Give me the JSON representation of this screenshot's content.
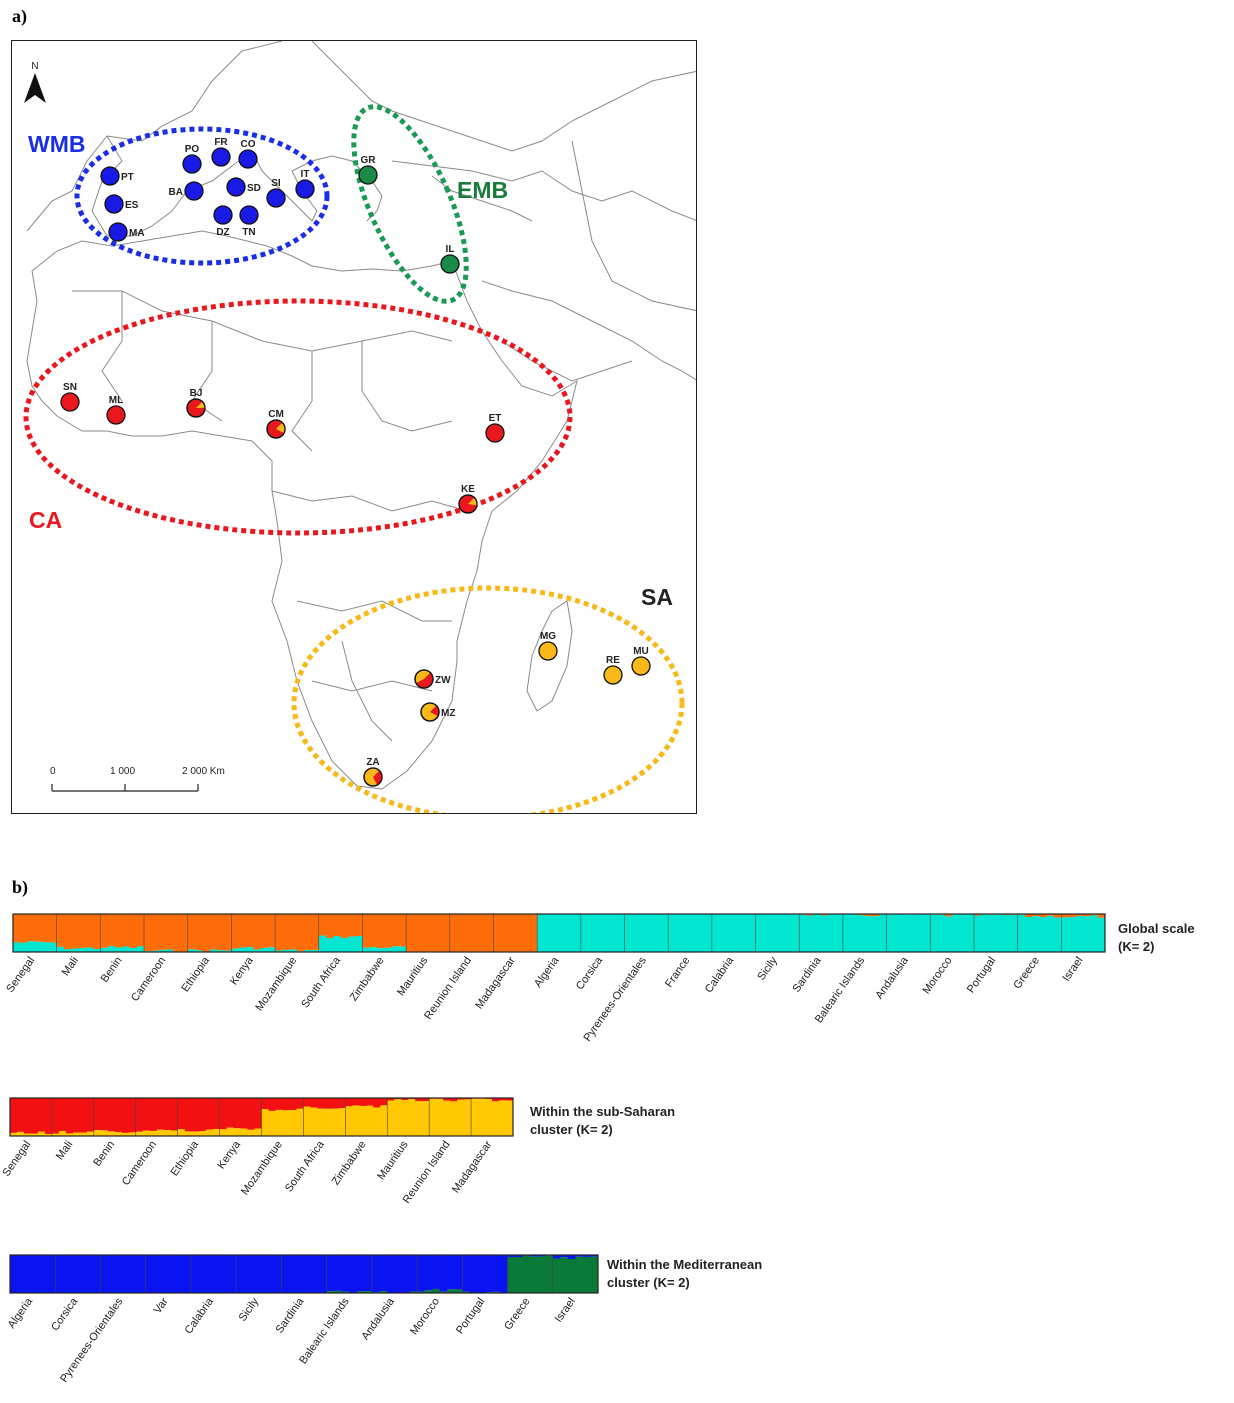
{
  "panel_a_label": "a)",
  "panel_b_label": "b)",
  "map": {
    "north_label": "N",
    "scale": {
      "ticks": [
        "0",
        "1 000",
        "2 000 Km"
      ]
    },
    "regions": [
      {
        "id": "WMB",
        "label": "WMB",
        "color": "#1a2ee6"
      },
      {
        "id": "EMB",
        "label": "EMB",
        "color": "#1a7a3a"
      },
      {
        "id": "CA",
        "label": "CA",
        "color": "#e8181e"
      },
      {
        "id": "SA",
        "label": "SA",
        "color": "#222222"
      }
    ],
    "sites": [
      {
        "code": "PT",
        "fill": "#1a1ae6",
        "sector": 0
      },
      {
        "code": "ES",
        "fill": "#1a1ae6",
        "sector": 0
      },
      {
        "code": "MA",
        "fill": "#1a1ae6",
        "sector": 0
      },
      {
        "code": "PO",
        "fill": "#1a1ae6",
        "sector": 0
      },
      {
        "code": "FR",
        "fill": "#1a1ae6",
        "sector": 0
      },
      {
        "code": "CO",
        "fill": "#1a1ae6",
        "sector": 0
      },
      {
        "code": "BA",
        "fill": "#1a1ae6",
        "sector": 0
      },
      {
        "code": "SD",
        "fill": "#1a1ae6",
        "sector": 0
      },
      {
        "code": "SI",
        "fill": "#1a1ae6",
        "sector": 0
      },
      {
        "code": "IT",
        "fill": "#1a1ae6",
        "sector": 0
      },
      {
        "code": "DZ",
        "fill": "#1a1ae6",
        "sector": 0
      },
      {
        "code": "TN",
        "fill": "#1a1ae6",
        "sector": 0
      },
      {
        "code": "GR",
        "fill": "#1a8a48",
        "sector": 0
      },
      {
        "code": "IL",
        "fill": "#1a8a48",
        "sector": 0
      },
      {
        "code": "SN",
        "fill": "#e8181e",
        "sector": 0
      },
      {
        "code": "ML",
        "fill": "#e8181e",
        "sector": 0
      },
      {
        "code": "BJ",
        "fill": "#e8181e",
        "sector": 0.12
      },
      {
        "code": "CM",
        "fill": "#e8181e",
        "sector": 0.2
      },
      {
        "code": "ET",
        "fill": "#e8181e",
        "sector": 0
      },
      {
        "code": "KE",
        "fill": "#e8181e",
        "sector": 0.15
      },
      {
        "code": "MG",
        "fill": "#f7b818",
        "sector": 0
      },
      {
        "code": "RE",
        "fill": "#f7b818",
        "sector": 0
      },
      {
        "code": "MU",
        "fill": "#f7b818",
        "sector": 0
      },
      {
        "code": "ZW",
        "fill": "#f7b818",
        "sector": 0.55,
        "sector_color": "#e8181e"
      },
      {
        "code": "MZ",
        "fill": "#f7b818",
        "sector": 0.2,
        "sector_color": "#e8181e"
      },
      {
        "code": "ZA",
        "fill": "#f7b818",
        "sector": 0.3,
        "sector_color": "#e8181e"
      }
    ]
  },
  "barplots": [
    {
      "caption": [
        "Global scale",
        "(K= 2)"
      ],
      "colors": [
        "#ff6d0a",
        "#00e6d0"
      ],
      "populations": [
        "Senegal",
        "Mali",
        "Benin",
        "Cameroon",
        "Ethiopia",
        "Kenya",
        "Mozambique",
        "South Africa",
        "Zimbabwe",
        "Mauritius",
        "Reunion Island",
        "Madagascar",
        "Algeria",
        "Corsica",
        "Pyrenees-Orientales",
        "France",
        "Calabria",
        "Sicily",
        "Sardinia",
        "Balearic Islands",
        "Andalusia",
        "Morocco",
        "Portugal",
        "Greece",
        "Israel"
      ],
      "first_cluster_share": [
        0.75,
        0.9,
        0.88,
        0.97,
        0.96,
        0.9,
        0.96,
        0.6,
        0.88,
        1,
        1,
        1,
        0,
        0,
        0,
        0,
        0,
        0,
        0.01,
        0.03,
        0.02,
        0.04,
        0.03,
        0.06,
        0.07
      ]
    },
    {
      "caption": [
        "Within the sub-Saharan",
        "cluster (K= 2)"
      ],
      "colors": [
        "#f21010",
        "#ffc800"
      ],
      "populations": [
        "Senegal",
        "Mali",
        "Benin",
        "Cameroon",
        "Ethiopia",
        "Kenya",
        "Mozambique",
        "South Africa",
        "Zimbabwe",
        "Mauritius",
        "Reunion Island",
        "Madagascar"
      ],
      "first_cluster_share": [
        0.92,
        0.9,
        0.88,
        0.85,
        0.85,
        0.8,
        0.3,
        0.25,
        0.22,
        0.05,
        0.05,
        0.05
      ]
    },
    {
      "caption": [
        "Within the Mediterranean",
        "cluster (K= 2)"
      ],
      "colors": [
        "#0a14f0",
        "#0a7a38"
      ],
      "populations": [
        "Algeria",
        "Corsica",
        "Pyrenees-Orientales",
        "Var",
        "Calabria",
        "Sicily",
        "Sardinia",
        "Balearic Islands",
        "Andalusia",
        "Morocco",
        "Portugal",
        "Greece",
        "Israel"
      ],
      "first_cluster_share": [
        1,
        1,
        1,
        1,
        1,
        1,
        1,
        0.97,
        0.99,
        0.93,
        0.98,
        0.03,
        0.08
      ]
    }
  ]
}
